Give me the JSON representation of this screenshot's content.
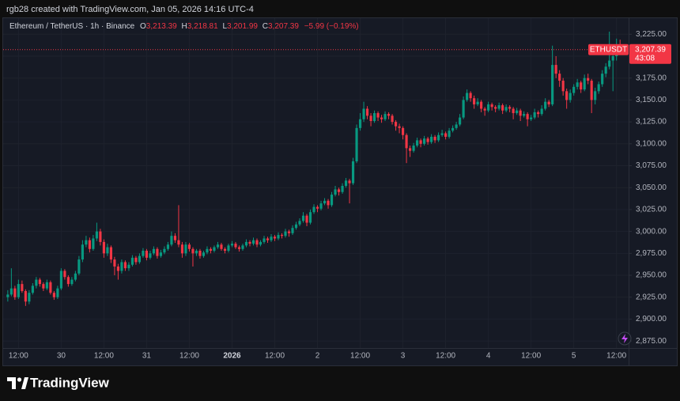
{
  "page_header": "rgb28 created with TradingView.com, Jan 05, 2026 14:16 UTC-4",
  "brand": "TradingView",
  "chart_data": {
    "type": "candlestick",
    "symbol_info": "Ethereum / TetherUS · 1h · Binance",
    "ohlc": [
      {
        "key": "O",
        "label": "3,213.39"
      },
      {
        "key": "H",
        "label": "3,218.81"
      },
      {
        "key": "L",
        "label": "3,201.99"
      },
      {
        "key": "C",
        "label": "3,207.39"
      }
    ],
    "change": "−5.99 (−0.19%)",
    "symbol": "ETHUSDT",
    "last_price": {
      "value": 3207.39,
      "label": "3,207.39"
    },
    "countdown": "43:08",
    "up_color": "#089981",
    "down_color": "#f23645",
    "grid": true,
    "xlim": [
      -1.3,
      174.4
    ],
    "xticks": [
      {
        "value": 3,
        "label": "12:00"
      },
      {
        "value": 15,
        "label": "30"
      },
      {
        "value": 27,
        "label": "12:00"
      },
      {
        "value": 39,
        "label": "31"
      },
      {
        "value": 51,
        "label": "12:00"
      },
      {
        "value": 63,
        "label": "2026"
      },
      {
        "value": 75,
        "label": "12:00"
      },
      {
        "value": 87,
        "label": "2"
      },
      {
        "value": 99,
        "label": "12:00"
      },
      {
        "value": 111,
        "label": "3"
      },
      {
        "value": 123,
        "label": "12:00"
      },
      {
        "value": 135,
        "label": "4"
      },
      {
        "value": 147,
        "label": "12:00"
      },
      {
        "value": 159,
        "label": "5"
      },
      {
        "value": 171,
        "label": "12:00"
      }
    ],
    "ylim": [
      2867,
      3237
    ],
    "yticks": [
      {
        "value": 2875,
        "label": "2,875.00"
      },
      {
        "value": 2900,
        "label": "2,900.00"
      },
      {
        "value": 2925,
        "label": "2,925.00"
      },
      {
        "value": 2950,
        "label": "2,950.00"
      },
      {
        "value": 2975,
        "label": "2,975.00"
      },
      {
        "value": 3000,
        "label": "3,000.00"
      },
      {
        "value": 3025,
        "label": "3,025.00"
      },
      {
        "value": 3050,
        "label": "3,050.00"
      },
      {
        "value": 3075,
        "label": "3,075.00"
      },
      {
        "value": 3100,
        "label": "3,100.00"
      },
      {
        "value": 3125,
        "label": "3,125.00"
      },
      {
        "value": 3150,
        "label": "3,150.00"
      },
      {
        "value": 3175,
        "label": "3,175.00"
      },
      {
        "value": 3200,
        "label": "3,200.00"
      },
      {
        "value": 3225,
        "label": "3,225.00"
      }
    ],
    "candles": [
      [
        2925,
        2933,
        2920,
        2928
      ],
      [
        2928,
        2958,
        2926,
        2935
      ],
      [
        2935,
        2938,
        2922,
        2925
      ],
      [
        2925,
        2945,
        2923,
        2940
      ],
      [
        2940,
        2944,
        2930,
        2932
      ],
      [
        2932,
        2934,
        2915,
        2920
      ],
      [
        2920,
        2933,
        2917,
        2930
      ],
      [
        2930,
        2941,
        2928,
        2938
      ],
      [
        2938,
        2948,
        2935,
        2945
      ],
      [
        2945,
        2947,
        2937,
        2940
      ],
      [
        2940,
        2942,
        2932,
        2935
      ],
      [
        2935,
        2945,
        2933,
        2942
      ],
      [
        2942,
        2944,
        2928,
        2930
      ],
      [
        2930,
        2932,
        2922,
        2925
      ],
      [
        2925,
        2938,
        2923,
        2935
      ],
      [
        2935,
        2958,
        2933,
        2955
      ],
      [
        2955,
        2957,
        2945,
        2948
      ],
      [
        2948,
        2950,
        2937,
        2940
      ],
      [
        2940,
        2948,
        2938,
        2945
      ],
      [
        2945,
        2955,
        2943,
        2952
      ],
      [
        2952,
        2972,
        2950,
        2968
      ],
      [
        2968,
        2990,
        2965,
        2985
      ],
      [
        2985,
        2995,
        2982,
        2990
      ],
      [
        2990,
        2993,
        2976,
        2980
      ],
      [
        2980,
        2996,
        2978,
        2992
      ],
      [
        2992,
        3010,
        2989,
        3000
      ],
      [
        3000,
        3003,
        2984,
        2988
      ],
      [
        2988,
        2991,
        2970,
        2975
      ],
      [
        2975,
        2986,
        2972,
        2982
      ],
      [
        2982,
        2984,
        2964,
        2968
      ],
      [
        2968,
        2971,
        2950,
        2960
      ],
      [
        2960,
        2963,
        2945,
        2955
      ],
      [
        2955,
        2968,
        2952,
        2965
      ],
      [
        2965,
        2967,
        2955,
        2958
      ],
      [
        2958,
        2965,
        2955,
        2962
      ],
      [
        2962,
        2973,
        2960,
        2970
      ],
      [
        2970,
        2972,
        2962,
        2965
      ],
      [
        2965,
        2975,
        2963,
        2972
      ],
      [
        2972,
        2981,
        2970,
        2978
      ],
      [
        2978,
        2980,
        2967,
        2970
      ],
      [
        2970,
        2978,
        2968,
        2975
      ],
      [
        2975,
        2983,
        2973,
        2980
      ],
      [
        2980,
        2982,
        2969,
        2972
      ],
      [
        2972,
        2979,
        2970,
        2976
      ],
      [
        2976,
        2983,
        2974,
        2980
      ],
      [
        2980,
        2988,
        2978,
        2985
      ],
      [
        2985,
        3000,
        2983,
        2995
      ],
      [
        2995,
        2998,
        2987,
        2990
      ],
      [
        2990,
        3030,
        2982,
        2985
      ],
      [
        2985,
        2988,
        2970,
        2975
      ],
      [
        2975,
        2988,
        2972,
        2985
      ],
      [
        2985,
        2987,
        2977,
        2980
      ],
      [
        2980,
        2982,
        2960,
        2975
      ],
      [
        2975,
        2980,
        2972,
        2978
      ],
      [
        2978,
        2980,
        2969,
        2972
      ],
      [
        2972,
        2978,
        2970,
        2976
      ],
      [
        2976,
        2983,
        2974,
        2980
      ],
      [
        2980,
        2982,
        2975,
        2978
      ],
      [
        2978,
        2984,
        2976,
        2982
      ],
      [
        2982,
        2988,
        2980,
        2985
      ],
      [
        2985,
        2987,
        2978,
        2980
      ],
      [
        2980,
        2982,
        2975,
        2978
      ],
      [
        2978,
        2986,
        2976,
        2984
      ],
      [
        2984,
        2989,
        2982,
        2986
      ],
      [
        2986,
        2988,
        2980,
        2982
      ],
      [
        2982,
        2984,
        2977,
        2980
      ],
      [
        2980,
        2986,
        2978,
        2984
      ],
      [
        2984,
        2991,
        2982,
        2988
      ],
      [
        2988,
        2990,
        2983,
        2986
      ],
      [
        2986,
        2993,
        2984,
        2990
      ],
      [
        2990,
        2992,
        2982,
        2985
      ],
      [
        2985,
        2990,
        2983,
        2988
      ],
      [
        2988,
        2995,
        2986,
        2992
      ],
      [
        2992,
        2994,
        2987,
        2990
      ],
      [
        2990,
        2997,
        2988,
        2994
      ],
      [
        2994,
        2996,
        2989,
        2992
      ],
      [
        2992,
        2999,
        2990,
        2996
      ],
      [
        2996,
        2998,
        2992,
        2995
      ],
      [
        2995,
        3003,
        2993,
        3000
      ],
      [
        3000,
        3002,
        2994,
        2998
      ],
      [
        2998,
        3007,
        2996,
        3004
      ],
      [
        3004,
        3011,
        3002,
        3008
      ],
      [
        3008,
        3015,
        3006,
        3012
      ],
      [
        3012,
        3022,
        3010,
        3018
      ],
      [
        3018,
        3020,
        3006,
        3010
      ],
      [
        3010,
        3025,
        3008,
        3022
      ],
      [
        3022,
        3031,
        3020,
        3028
      ],
      [
        3028,
        3030,
        3022,
        3026
      ],
      [
        3026,
        3035,
        3024,
        3032
      ],
      [
        3032,
        3038,
        3030,
        3035
      ],
      [
        3035,
        3037,
        3026,
        3030
      ],
      [
        3030,
        3045,
        3028,
        3042
      ],
      [
        3042,
        3052,
        3040,
        3048
      ],
      [
        3048,
        3050,
        3041,
        3045
      ],
      [
        3045,
        3055,
        3043,
        3052
      ],
      [
        3052,
        3061,
        3050,
        3058
      ],
      [
        3058,
        3060,
        3032,
        3055
      ],
      [
        3055,
        3084,
        3053,
        3080
      ],
      [
        3080,
        3122,
        3078,
        3118
      ],
      [
        3118,
        3135,
        3115,
        3128
      ],
      [
        3128,
        3148,
        3125,
        3140
      ],
      [
        3140,
        3143,
        3128,
        3132
      ],
      [
        3132,
        3135,
        3120,
        3126
      ],
      [
        3126,
        3138,
        3124,
        3135
      ],
      [
        3135,
        3137,
        3126,
        3130
      ],
      [
        3130,
        3133,
        3124,
        3128
      ],
      [
        3128,
        3137,
        3126,
        3134
      ],
      [
        3134,
        3136,
        3128,
        3132
      ],
      [
        3132,
        3134,
        3122,
        3125
      ],
      [
        3125,
        3127,
        3115,
        3120
      ],
      [
        3120,
        3123,
        3112,
        3118
      ],
      [
        3118,
        3120,
        3105,
        3110
      ],
      [
        3110,
        3112,
        3078,
        3095
      ],
      [
        3095,
        3098,
        3085,
        3092
      ],
      [
        3092,
        3101,
        3090,
        3098
      ],
      [
        3098,
        3107,
        3096,
        3104
      ],
      [
        3104,
        3106,
        3096,
        3100
      ],
      [
        3100,
        3109,
        3098,
        3106
      ],
      [
        3106,
        3108,
        3099,
        3102
      ],
      [
        3102,
        3111,
        3100,
        3108
      ],
      [
        3108,
        3110,
        3101,
        3104
      ],
      [
        3104,
        3113,
        3102,
        3110
      ],
      [
        3110,
        3116,
        3108,
        3112
      ],
      [
        3112,
        3114,
        3105,
        3108
      ],
      [
        3108,
        3118,
        3106,
        3115
      ],
      [
        3115,
        3121,
        3113,
        3118
      ],
      [
        3118,
        3125,
        3116,
        3122
      ],
      [
        3122,
        3134,
        3120,
        3130
      ],
      [
        3130,
        3154,
        3128,
        3150
      ],
      [
        3150,
        3162,
        3148,
        3158
      ],
      [
        3158,
        3160,
        3148,
        3152
      ],
      [
        3152,
        3155,
        3140,
        3145
      ],
      [
        3145,
        3152,
        3143,
        3148
      ],
      [
        3148,
        3150,
        3136,
        3140
      ],
      [
        3140,
        3142,
        3132,
        3138
      ],
      [
        3138,
        3148,
        3136,
        3145
      ],
      [
        3145,
        3147,
        3138,
        3142
      ],
      [
        3142,
        3144,
        3136,
        3140
      ],
      [
        3140,
        3147,
        3138,
        3144
      ],
      [
        3144,
        3146,
        3134,
        3138
      ],
      [
        3138,
        3145,
        3136,
        3142
      ],
      [
        3142,
        3144,
        3136,
        3140
      ],
      [
        3140,
        3142,
        3128,
        3135
      ],
      [
        3135,
        3141,
        3133,
        3138
      ],
      [
        3138,
        3140,
        3126,
        3132
      ],
      [
        3132,
        3137,
        3130,
        3134
      ],
      [
        3134,
        3136,
        3120,
        3128
      ],
      [
        3128,
        3133,
        3126,
        3130
      ],
      [
        3130,
        3140,
        3128,
        3136
      ],
      [
        3136,
        3138,
        3130,
        3134
      ],
      [
        3134,
        3144,
        3132,
        3140
      ],
      [
        3140,
        3152,
        3138,
        3148
      ],
      [
        3148,
        3150,
        3142,
        3145
      ],
      [
        3145,
        3212,
        3143,
        3190
      ],
      [
        3190,
        3200,
        3175,
        3180
      ],
      [
        3180,
        3184,
        3165,
        3172
      ],
      [
        3172,
        3175,
        3155,
        3160
      ],
      [
        3160,
        3163,
        3140,
        3150
      ],
      [
        3150,
        3162,
        3147,
        3158
      ],
      [
        3158,
        3168,
        3155,
        3165
      ],
      [
        3165,
        3174,
        3162,
        3170
      ],
      [
        3170,
        3172,
        3158,
        3162
      ],
      [
        3162,
        3179,
        3160,
        3175
      ],
      [
        3175,
        3180,
        3168,
        3172
      ],
      [
        3172,
        3174,
        3135,
        3150
      ],
      [
        3150,
        3164,
        3145,
        3160
      ],
      [
        3160,
        3171,
        3157,
        3168
      ],
      [
        3168,
        3184,
        3165,
        3180
      ],
      [
        3180,
        3192,
        3176,
        3188
      ],
      [
        3188,
        3228,
        3185,
        3195
      ],
      [
        3195,
        3205,
        3160,
        3200
      ],
      [
        3200,
        3220,
        3195,
        3213.39
      ],
      [
        3213.39,
        3218.81,
        3201.99,
        3207.39
      ]
    ]
  }
}
